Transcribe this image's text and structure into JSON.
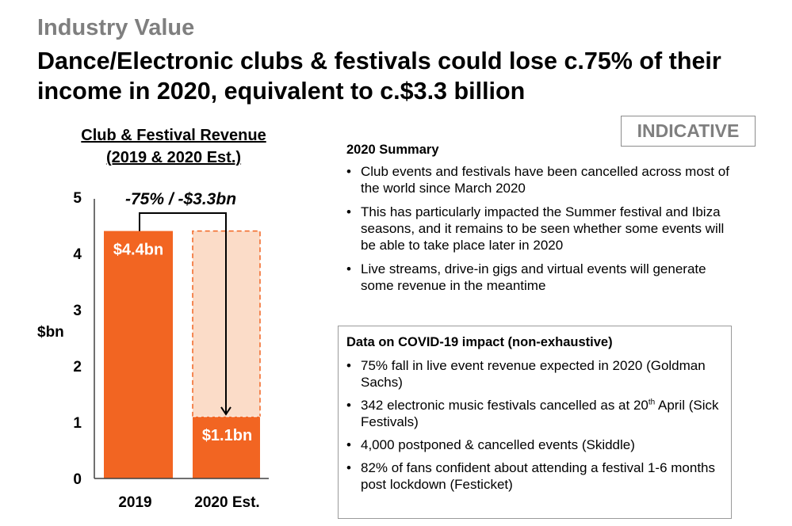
{
  "header": {
    "kicker": "Industry Value",
    "headline": "Dance/Electronic clubs & festivals could lose c.75% of their income in 2020, equivalent to c.$3.3 billion"
  },
  "badge": {
    "label": "INDICATIVE"
  },
  "chart_data": {
    "type": "bar",
    "title": "Club & Festival Revenue (2019 & 2020 Est.)",
    "title_lines": [
      "Club & Festival Revenue",
      "(2019 & 2020 Est.)"
    ],
    "categories": [
      "2019",
      "2020 Est."
    ],
    "values": [
      4.4,
      1.1
    ],
    "data_labels": [
      "$4.4bn",
      "$1.1bn"
    ],
    "ghost_value": 4.4,
    "xlabel": "",
    "ylabel": "$bn",
    "ylim": [
      0,
      5
    ],
    "yticks": [
      0,
      1,
      2,
      3,
      4,
      5
    ],
    "grid": false,
    "annotation": {
      "text": "-75% / -$3.3bn",
      "from": "2019",
      "to": "2020 Est."
    },
    "colors": {
      "bar": "#f26522",
      "ghost_fill": "#fbdcc8",
      "ghost_border": "#f26522",
      "axis": "#404040"
    }
  },
  "summary": {
    "title": "2020 Summary",
    "bullets": [
      "Club events and festivals have been cancelled across most of the world since March 2020",
      "This has particularly impacted the Summer festival and Ibiza seasons, and it remains to be seen whether some events will be able to take place later in 2020",
      "Live streams, drive-in gigs and virtual events will generate some revenue in the meantime"
    ]
  },
  "covid_data": {
    "title": "Data on COVID-19 impact (non-exhaustive)",
    "bullets": [
      {
        "text": "75% fall in live event revenue expected in 2020 (Goldman Sachs)"
      },
      {
        "text": "342 electronic music festivals cancelled as at 20",
        "sup": "th",
        "after": " April (Sick Festivals)"
      },
      {
        "text": "4,000 postponed & cancelled events (Skiddle)"
      },
      {
        "text": "82% of fans confident about attending a festival 1-6 months post lockdown (Festicket)"
      }
    ]
  },
  "bullet_glyph": "•"
}
